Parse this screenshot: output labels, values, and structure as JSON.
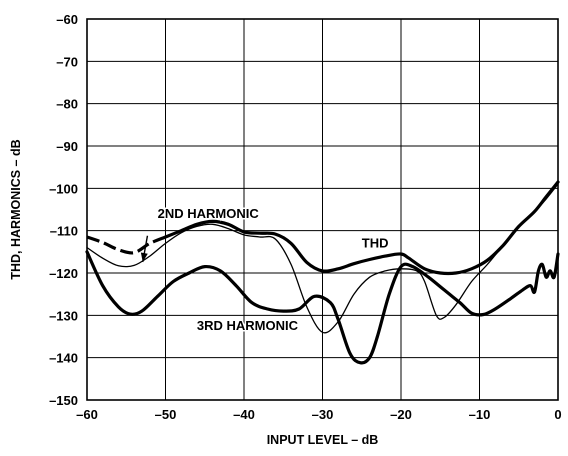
{
  "chart_data": {
    "type": "line",
    "title": "",
    "xlabel": "INPUT LEVEL – dB",
    "ylabel": "THD, HARMONICS – dB",
    "xlim": [
      -60,
      0
    ],
    "ylim": [
      -150,
      -60
    ],
    "grid": true,
    "x_ticks": [
      -60,
      -50,
      -40,
      -30,
      -20,
      -10,
      0
    ],
    "x_tick_labels": [
      "–60",
      "–50",
      "–40",
      "–30",
      "–20",
      "–10",
      "0"
    ],
    "y_ticks": [
      -60,
      -70,
      -80,
      -90,
      -100,
      -110,
      -120,
      -130,
      -140,
      -150
    ],
    "y_tick_labels": [
      "–60",
      "–70",
      "–80",
      "–90",
      "–100",
      "–110",
      "–120",
      "–130",
      "–140",
      "–150"
    ],
    "series": [
      {
        "name": "THD",
        "color": "#000000",
        "weight": "thick",
        "dash": "dashed-start",
        "points": [
          [
            -60,
            -111.5
          ],
          [
            -58,
            -112.8
          ],
          [
            -56,
            -114.5
          ],
          [
            -54,
            -115.2
          ],
          [
            -52,
            -113
          ],
          [
            -50,
            -111.5
          ],
          [
            -48,
            -110
          ],
          [
            -46,
            -108.5
          ],
          [
            -44,
            -107.8
          ],
          [
            -42,
            -108.5
          ],
          [
            -40,
            -110.3
          ],
          [
            -38,
            -110.6
          ],
          [
            -36,
            -110.8
          ],
          [
            -34,
            -113
          ],
          [
            -32,
            -117.5
          ],
          [
            -30,
            -119.5
          ],
          [
            -28,
            -119
          ],
          [
            -26,
            -117.8
          ],
          [
            -24,
            -116.8
          ],
          [
            -22,
            -116
          ],
          [
            -20,
            -115.5
          ],
          [
            -19,
            -116.5
          ],
          [
            -17,
            -119
          ],
          [
            -15,
            -120
          ],
          [
            -13,
            -120
          ],
          [
            -11,
            -119
          ],
          [
            -9,
            -117
          ],
          [
            -7,
            -113.5
          ],
          [
            -5,
            -109
          ],
          [
            -3,
            -105.5
          ],
          [
            -1.5,
            -102
          ],
          [
            0,
            -98.5
          ]
        ]
      },
      {
        "name": "2ND HARMONIC",
        "color": "#000000",
        "weight": "thin",
        "dash": "solid",
        "points": [
          [
            -60,
            -114
          ],
          [
            -58,
            -116.5
          ],
          [
            -56,
            -118.3
          ],
          [
            -54,
            -118.2
          ],
          [
            -52,
            -116
          ],
          [
            -50,
            -113
          ],
          [
            -48,
            -110.5
          ],
          [
            -46,
            -109
          ],
          [
            -44,
            -108.5
          ],
          [
            -42,
            -109.5
          ],
          [
            -40,
            -111
          ],
          [
            -38,
            -111.5
          ],
          [
            -36,
            -112
          ],
          [
            -34,
            -118
          ],
          [
            -32,
            -128
          ],
          [
            -30,
            -134
          ],
          [
            -28,
            -131.5
          ],
          [
            -26,
            -125
          ],
          [
            -24,
            -121
          ],
          [
            -22,
            -119.5
          ],
          [
            -20,
            -119
          ],
          [
            -18,
            -119.5
          ],
          [
            -17,
            -122
          ],
          [
            -15.5,
            -130
          ],
          [
            -14.5,
            -130.5
          ],
          [
            -13,
            -127.5
          ],
          [
            -11,
            -122
          ],
          [
            -9,
            -118
          ],
          [
            -7,
            -113.5
          ],
          [
            -5,
            -109
          ],
          [
            -3,
            -105.5
          ],
          [
            -1.5,
            -102.5
          ],
          [
            0,
            -99
          ]
        ]
      },
      {
        "name": "3RD HARMONIC",
        "color": "#000000",
        "weight": "thick",
        "dash": "solid",
        "points": [
          [
            -60,
            -115
          ],
          [
            -58,
            -123
          ],
          [
            -56,
            -128
          ],
          [
            -54.5,
            -129.7
          ],
          [
            -53,
            -129
          ],
          [
            -51,
            -125.5
          ],
          [
            -49,
            -122
          ],
          [
            -47,
            -120
          ],
          [
            -45,
            -118.5
          ],
          [
            -43,
            -119.5
          ],
          [
            -41,
            -123
          ],
          [
            -39,
            -127
          ],
          [
            -37,
            -128.5
          ],
          [
            -35,
            -129
          ],
          [
            -33,
            -128.5
          ],
          [
            -31,
            -125.5
          ],
          [
            -29,
            -127
          ],
          [
            -28,
            -131
          ],
          [
            -26.5,
            -139
          ],
          [
            -25.2,
            -141.2
          ],
          [
            -24,
            -140
          ],
          [
            -23,
            -135
          ],
          [
            -21.5,
            -125
          ],
          [
            -20,
            -118.5
          ],
          [
            -18.5,
            -118.5
          ],
          [
            -16.5,
            -121
          ],
          [
            -14.5,
            -124
          ],
          [
            -12.5,
            -127
          ],
          [
            -11,
            -129.5
          ],
          [
            -9.5,
            -129.8
          ],
          [
            -8,
            -128.5
          ],
          [
            -6,
            -126
          ],
          [
            -4.5,
            -124
          ],
          [
            -3.5,
            -123
          ],
          [
            -3,
            -124.5
          ],
          [
            -2.5,
            -119.5
          ],
          [
            -2,
            -118
          ],
          [
            -1.5,
            -121
          ],
          [
            -1,
            -119.5
          ],
          [
            -0.5,
            -121
          ],
          [
            0,
            -115.5
          ]
        ]
      }
    ],
    "annotations": [
      {
        "text": "2ND HARMONIC",
        "x": -51,
        "y": -107,
        "anchor": "start-shift"
      },
      {
        "text": "THD",
        "x": -25,
        "y": -114,
        "anchor": "start"
      },
      {
        "text": "3RD HARMONIC",
        "x": -46,
        "y": -133.5,
        "anchor": "start"
      }
    ],
    "arrow": {
      "from": [
        -52.3,
        -111.2
      ],
      "to": [
        -52.9,
        -117.4
      ]
    }
  }
}
